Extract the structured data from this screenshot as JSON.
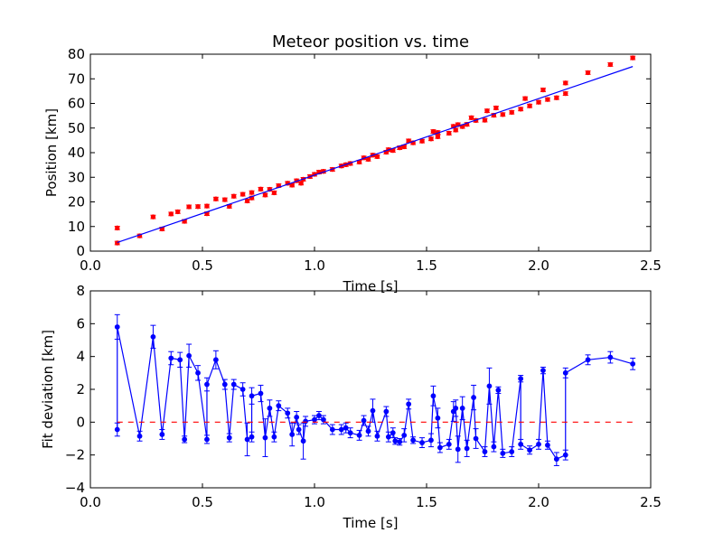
{
  "chart_data": [
    {
      "type": "scatter",
      "title": "Meteor position vs. time",
      "xlabel": "Time [s]",
      "ylabel": "Position [km]",
      "xlim": [
        0.0,
        2.5
      ],
      "ylim": [
        0,
        80
      ],
      "xticks": [
        "0.0",
        "0.5",
        "1.0",
        "1.5",
        "2.0",
        "2.5"
      ],
      "yticks": [
        "0",
        "10",
        "20",
        "30",
        "40",
        "50",
        "60",
        "70",
        "80"
      ],
      "series": [
        {
          "kind": "scatter-errorbar",
          "color": "#ff0000",
          "yerr": 0.7,
          "points": [
            [
              0.12,
              9.4
            ],
            [
              0.12,
              3.3
            ],
            [
              0.22,
              6.2
            ],
            [
              0.28,
              13.9
            ],
            [
              0.32,
              9.0
            ],
            [
              0.36,
              15.1
            ],
            [
              0.39,
              16.0
            ],
            [
              0.42,
              12.1
            ],
            [
              0.44,
              18.0
            ],
            [
              0.48,
              18.1
            ],
            [
              0.52,
              15.2
            ],
            [
              0.52,
              18.3
            ],
            [
              0.56,
              21.2
            ],
            [
              0.6,
              20.9
            ],
            [
              0.62,
              18.2
            ],
            [
              0.64,
              22.3
            ],
            [
              0.68,
              23.1
            ],
            [
              0.7,
              20.4
            ],
            [
              0.72,
              21.6
            ],
            [
              0.72,
              23.8
            ],
            [
              0.76,
              25.2
            ],
            [
              0.78,
              22.8
            ],
            [
              0.8,
              25.1
            ],
            [
              0.82,
              23.7
            ],
            [
              0.84,
              26.6
            ],
            [
              0.88,
              27.6
            ],
            [
              0.9,
              26.8
            ],
            [
              0.92,
              28.6
            ],
            [
              0.94,
              27.6
            ],
            [
              0.95,
              29.2
            ],
            [
              0.98,
              30.3
            ],
            [
              1.0,
              31.2
            ],
            [
              1.02,
              32.1
            ],
            [
              1.04,
              32.4
            ],
            [
              1.08,
              33.2
            ],
            [
              1.12,
              34.6
            ],
            [
              1.14,
              35.1
            ],
            [
              1.16,
              35.6
            ],
            [
              1.2,
              36.2
            ],
            [
              1.22,
              37.9
            ],
            [
              1.24,
              37.3
            ],
            [
              1.26,
              39.0
            ],
            [
              1.28,
              38.4
            ],
            [
              1.32,
              40.2
            ],
            [
              1.33,
              41.2
            ],
            [
              1.35,
              40.9
            ],
            [
              1.38,
              42.0
            ],
            [
              1.4,
              42.4
            ],
            [
              1.42,
              44.8
            ],
            [
              1.44,
              44.0
            ],
            [
              1.48,
              44.7
            ],
            [
              1.52,
              45.6
            ],
            [
              1.53,
              48.6
            ],
            [
              1.55,
              46.5
            ],
            [
              1.55,
              48.2
            ],
            [
              1.6,
              47.9
            ],
            [
              1.62,
              50.7
            ],
            [
              1.63,
              49.2
            ],
            [
              1.64,
              51.4
            ],
            [
              1.66,
              50.6
            ],
            [
              1.68,
              51.5
            ],
            [
              1.7,
              54.2
            ],
            [
              1.72,
              53.1
            ],
            [
              1.76,
              53.2
            ],
            [
              1.77,
              57.0
            ],
            [
              1.8,
              55.2
            ],
            [
              1.81,
              58.2
            ],
            [
              1.84,
              55.5
            ],
            [
              1.88,
              56.4
            ],
            [
              1.92,
              57.7
            ],
            [
              1.94,
              62.0
            ],
            [
              1.96,
              59.0
            ],
            [
              2.0,
              60.5
            ],
            [
              2.02,
              65.5
            ],
            [
              2.04,
              61.6
            ],
            [
              2.08,
              62.3
            ],
            [
              2.12,
              64.0
            ],
            [
              2.12,
              68.3
            ],
            [
              2.22,
              72.5
            ],
            [
              2.32,
              75.8
            ],
            [
              2.42,
              78.5
            ]
          ]
        },
        {
          "kind": "line",
          "color": "#0000ff",
          "points": [
            [
              0.12,
              3.5
            ],
            [
              2.42,
              75.0
            ]
          ]
        }
      ]
    },
    {
      "type": "line",
      "title": "",
      "xlabel": "Time [s]",
      "ylabel": "Fit deviation [km]",
      "xlim": [
        0.0,
        2.5
      ],
      "ylim": [
        -4,
        8
      ],
      "xticks": [
        "0.0",
        "0.5",
        "1.0",
        "1.5",
        "2.0",
        "2.5"
      ],
      "yticks": [
        "−4",
        "−2",
        "0",
        "2",
        "4",
        "6",
        "8"
      ],
      "series": [
        {
          "kind": "line-errorbar",
          "color": "#0000ff",
          "points": [
            [
              0.12,
              -0.45,
              0.4
            ],
            [
              0.12,
              5.8,
              0.75
            ],
            [
              0.22,
              -0.85,
              0.3
            ],
            [
              0.28,
              5.2,
              0.7
            ],
            [
              0.32,
              -0.75,
              0.3
            ],
            [
              0.36,
              3.9,
              0.4
            ],
            [
              0.4,
              3.8,
              0.45
            ],
            [
              0.42,
              -1.05,
              0.2
            ],
            [
              0.44,
              4.05,
              0.7
            ],
            [
              0.48,
              3.0,
              0.45
            ],
            [
              0.52,
              -1.05,
              0.25
            ],
            [
              0.52,
              2.3,
              0.4
            ],
            [
              0.56,
              3.8,
              0.55
            ],
            [
              0.6,
              2.3,
              0.3
            ],
            [
              0.62,
              -0.95,
              0.25
            ],
            [
              0.64,
              2.3,
              0.3
            ],
            [
              0.68,
              2.0,
              0.4
            ],
            [
              0.7,
              -1.05,
              1.0
            ],
            [
              0.72,
              -0.9,
              0.3
            ],
            [
              0.72,
              1.6,
              0.5
            ],
            [
              0.76,
              1.75,
              0.5
            ],
            [
              0.78,
              -0.95,
              1.15
            ],
            [
              0.8,
              0.85,
              0.5
            ],
            [
              0.82,
              -0.9,
              0.3
            ],
            [
              0.84,
              1.0,
              0.3
            ],
            [
              0.88,
              0.55,
              0.3
            ],
            [
              0.9,
              -0.75,
              0.7
            ],
            [
              0.92,
              0.3,
              0.35
            ],
            [
              0.93,
              -0.45,
              0.3
            ],
            [
              0.95,
              -1.15,
              1.1
            ],
            [
              0.96,
              0.05,
              0.3
            ],
            [
              1.0,
              0.15,
              0.25
            ],
            [
              1.02,
              0.4,
              0.25
            ],
            [
              1.04,
              0.15,
              0.25
            ],
            [
              1.08,
              -0.45,
              0.3
            ],
            [
              1.12,
              -0.45,
              0.3
            ],
            [
              1.14,
              -0.35,
              0.3
            ],
            [
              1.16,
              -0.65,
              0.3
            ],
            [
              1.2,
              -0.8,
              0.3
            ],
            [
              1.22,
              0.1,
              0.3
            ],
            [
              1.24,
              -0.55,
              0.3
            ],
            [
              1.26,
              0.7,
              0.7
            ],
            [
              1.28,
              -0.85,
              0.3
            ],
            [
              1.32,
              0.65,
              0.3
            ],
            [
              1.33,
              -0.9,
              0.3
            ],
            [
              1.35,
              -0.65,
              0.3
            ],
            [
              1.36,
              -1.15,
              0.2
            ],
            [
              1.38,
              -1.2,
              0.2
            ],
            [
              1.4,
              -0.8,
              0.4
            ],
            [
              1.42,
              1.1,
              0.3
            ],
            [
              1.44,
              -1.1,
              0.2
            ],
            [
              1.48,
              -1.25,
              0.3
            ],
            [
              1.52,
              -1.1,
              0.4
            ],
            [
              1.53,
              1.6,
              0.6
            ],
            [
              1.55,
              0.25,
              0.6
            ],
            [
              1.56,
              -1.55,
              0.3
            ],
            [
              1.6,
              -1.35,
              0.3
            ],
            [
              1.62,
              0.65,
              0.6
            ],
            [
              1.63,
              0.85,
              0.5
            ],
            [
              1.64,
              -1.65,
              0.8
            ],
            [
              1.66,
              0.85,
              0.7
            ],
            [
              1.68,
              -1.6,
              0.5
            ],
            [
              1.71,
              1.5,
              0.75
            ],
            [
              1.72,
              -1.0,
              0.6
            ],
            [
              1.76,
              -1.8,
              0.3
            ],
            [
              1.78,
              2.2,
              1.1
            ],
            [
              1.8,
              -1.5,
              0.3
            ],
            [
              1.82,
              1.95,
              0.2
            ],
            [
              1.84,
              -1.9,
              0.25
            ],
            [
              1.88,
              -1.8,
              0.3
            ],
            [
              1.92,
              2.65,
              0.2
            ],
            [
              1.92,
              -1.35,
              0.3
            ],
            [
              1.96,
              -1.7,
              0.25
            ],
            [
              2.0,
              -1.35,
              0.3
            ],
            [
              2.02,
              3.15,
              0.2
            ],
            [
              2.04,
              -1.4,
              0.25
            ],
            [
              2.08,
              -2.25,
              0.4
            ],
            [
              2.12,
              -2.0,
              0.3
            ],
            [
              2.12,
              3.0,
              0.3
            ],
            [
              2.22,
              3.8,
              0.3
            ],
            [
              2.32,
              3.95,
              0.35
            ],
            [
              2.42,
              3.55,
              0.35
            ]
          ]
        },
        {
          "kind": "dashed-line",
          "color": "#ff0000",
          "points": [
            [
              0.12,
              0
            ],
            [
              2.42,
              0
            ]
          ]
        }
      ]
    }
  ]
}
